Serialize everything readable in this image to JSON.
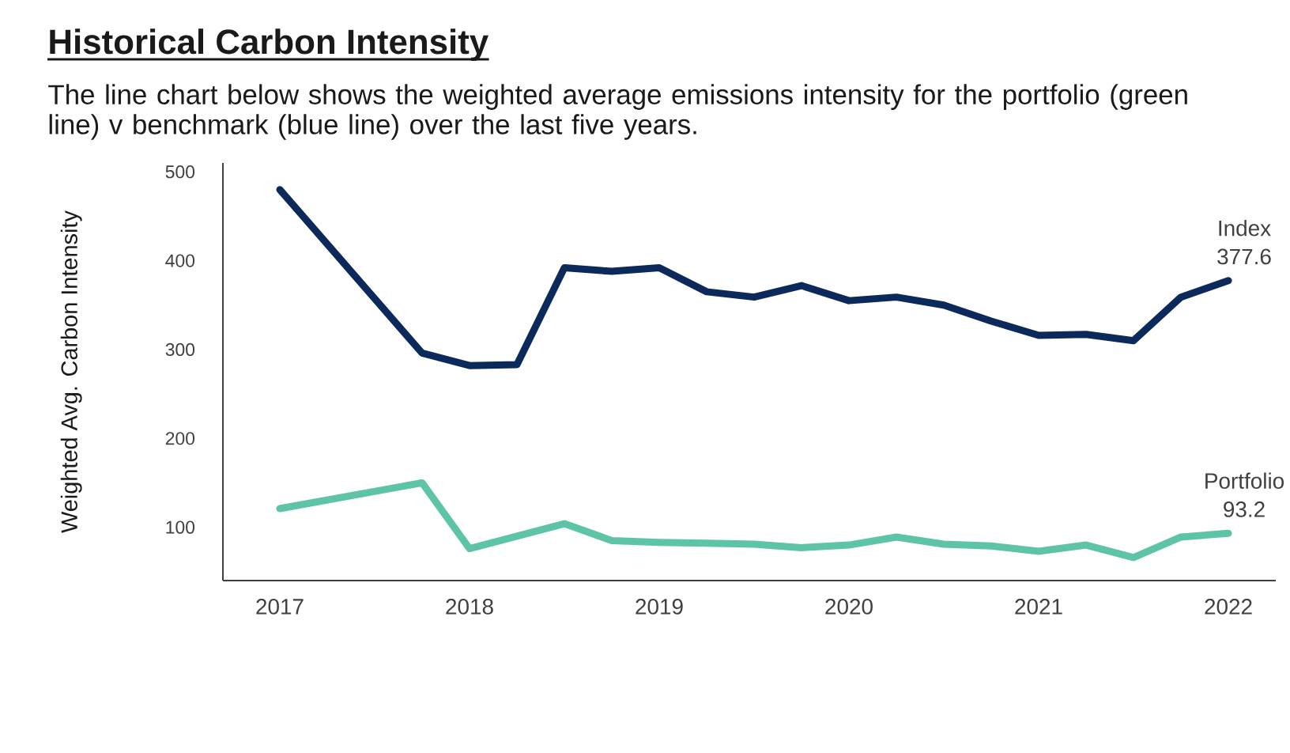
{
  "chart_data": {
    "type": "line",
    "title": "Historical Carbon Intensity",
    "subtitle": "The line chart below shows the weighted average emissions intensity for the portfolio (green line) v benchmark (blue line) over the last five years.",
    "ylabel": "Weighted Avg. Carbon Intensity",
    "x": [
      2017,
      2017.75,
      2018,
      2018.25,
      2018.5,
      2018.75,
      2019,
      2019.25,
      2019.5,
      2019.75,
      2020,
      2020.25,
      2020.5,
      2020.75,
      2021,
      2021.25,
      2021.5,
      2021.75,
      2022
    ],
    "series": [
      {
        "name": "Index",
        "color": "#0b2a5b",
        "values": [
          480,
          296,
          282,
          283,
          392,
          388,
          392,
          365,
          359,
          372,
          355,
          359,
          350,
          332,
          316,
          317,
          310,
          359,
          377.6
        ],
        "value_labels": [
          null,
          null,
          null,
          null,
          null,
          null,
          null,
          null,
          null,
          null,
          null,
          null,
          null,
          null,
          null,
          null,
          null,
          null,
          "377.6"
        ]
      },
      {
        "name": "Portfolio",
        "color": "#5ec4a7",
        "values": [
          121,
          150,
          76,
          90,
          104,
          85,
          83,
          82,
          81,
          77,
          80,
          89,
          81,
          79,
          73,
          80,
          66,
          89,
          93.2
        ],
        "value_labels": [
          null,
          null,
          null,
          null,
          null,
          null,
          null,
          null,
          null,
          null,
          null,
          null,
          null,
          null,
          null,
          null,
          null,
          null,
          "93.2"
        ]
      }
    ],
    "xlim": [
      2016.7,
      2022.25
    ],
    "ylim": [
      40,
      510
    ],
    "xticks": [
      2017,
      2018,
      2019,
      2020,
      2021,
      2022
    ],
    "yticks": [
      100,
      200,
      300,
      400,
      500
    ]
  }
}
